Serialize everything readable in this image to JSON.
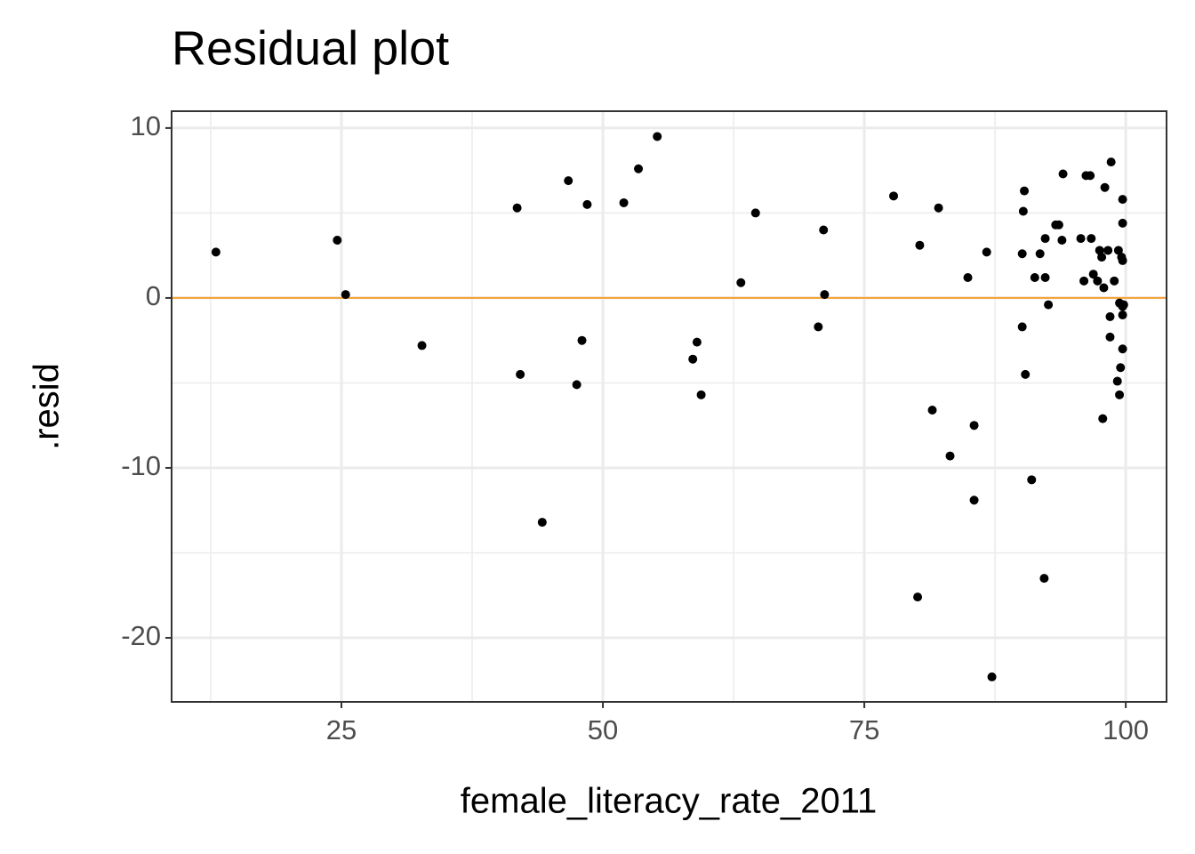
{
  "chart_data": {
    "type": "scatter",
    "title": "Residual plot",
    "x_label": "female_literacy_rate_2011",
    "y_label": ".resid",
    "x": [
      13.0,
      24.6,
      25.4,
      32.7,
      41.8,
      42.1,
      44.2,
      46.7,
      47.5,
      48.0,
      48.5,
      52.0,
      53.4,
      55.2,
      58.6,
      59.0,
      59.4,
      63.2,
      64.6,
      70.6,
      71.1,
      71.2,
      77.8,
      80.1,
      80.3,
      81.5,
      82.1,
      83.2,
      84.9,
      85.5,
      85.5,
      86.7,
      87.2,
      90.1,
      90.1,
      90.2,
      90.3,
      90.4,
      91.0,
      91.3,
      91.8,
      92.2,
      92.3,
      92.3,
      92.6,
      93.6,
      94.0,
      93.9,
      93.3,
      95.7,
      96.0,
      96.2,
      96.6,
      96.7,
      96.9,
      97.3,
      97.5,
      97.7,
      97.8,
      97.9,
      98.0,
      98.3,
      98.5,
      98.5,
      98.6,
      98.9,
      99.2,
      99.3,
      99.4,
      99.4,
      99.5,
      99.6,
      99.7,
      99.7,
      99.7,
      99.7,
      99.7,
      99.7,
      99.8
    ],
    "values": [
      2.7,
      3.4,
      0.2,
      -2.8,
      5.3,
      -4.5,
      -13.2,
      6.9,
      -5.1,
      -2.5,
      5.5,
      5.6,
      7.6,
      9.5,
      -3.6,
      -2.6,
      -5.7,
      0.9,
      5.0,
      -1.7,
      4.0,
      0.2,
      6.0,
      -17.6,
      3.1,
      -6.6,
      5.3,
      -9.3,
      1.2,
      -7.5,
      -11.9,
      2.7,
      -22.3,
      -1.7,
      2.6,
      5.1,
      6.3,
      -4.5,
      -10.7,
      1.2,
      2.6,
      -16.5,
      1.2,
      3.5,
      -0.4,
      4.3,
      7.3,
      3.4,
      4.3,
      3.5,
      1.0,
      7.2,
      7.2,
      3.5,
      1.4,
      1.0,
      2.8,
      2.4,
      -7.1,
      0.6,
      6.5,
      2.8,
      -1.1,
      -2.3,
      8.0,
      1.0,
      -4.9,
      2.8,
      -5.7,
      -0.3,
      -4.1,
      2.4,
      5.8,
      -0.5,
      -1.0,
      -3.0,
      4.4,
      2.2,
      -0.4
    ],
    "color": "#000000",
    "hline": {
      "y": 0,
      "color": "#f5a030"
    },
    "xlim": [
      8.76,
      103.9
    ],
    "ylim": [
      -23.77,
      10.99
    ],
    "xticks": [
      25,
      50,
      75,
      100
    ],
    "yticks": [
      -20,
      -10,
      0,
      10
    ],
    "grid": true
  }
}
